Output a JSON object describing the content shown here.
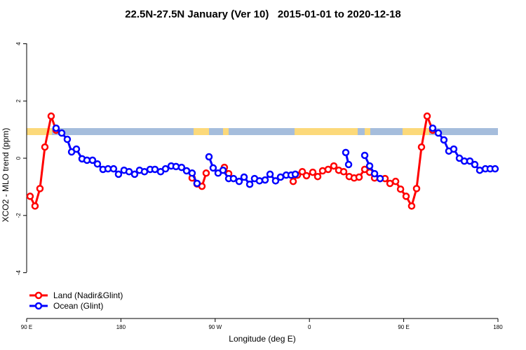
{
  "chart_data": {
    "type": "line",
    "title": "22.5N-27.5N January (Ver 10)   2015-01-01 to 2020-12-18",
    "x_label": "Longitude (deg E)",
    "y_label": "XCO2 - MLO trend (ppm)",
    "xlim": [
      90,
      540
    ],
    "xticks": [
      {
        "value": 90,
        "label": "90 E"
      },
      180,
      {
        "value": 270,
        "label": "90 W"
      },
      {
        "value": 360,
        "label": "0"
      },
      {
        "value": 450,
        "label": "90 E"
      },
      {
        "value": 540,
        "label": "180"
      }
    ],
    "ylim": [
      -5.6,
      4.55
    ],
    "yticks": [
      -4,
      -2,
      0,
      2,
      4
    ],
    "legend": "bottom-left",
    "series": [
      {
        "name": "Land (Nadir&Glint)",
        "color": "#ff0000",
        "x": [
          93.3,
          98,
          102.7,
          107.4,
          113.4,
          118.1,
          180,
          248,
          252.7,
          257.4,
          261.4,
          270,
          278.8,
          282.9,
          310,
          344.5,
          348.5,
          353.2,
          357.2,
          363.2,
          367.9,
          372.6,
          377.9,
          383.3,
          388,
          392.7,
          398,
          402.7,
          407.4,
          412.8,
          417.5,
          422.2,
          427.5,
          432.2,
          436.9,
          442.3,
          447,
          452.3,
          457.6,
          462.3,
          467,
          472.4,
          477.7
        ],
        "values": [
          -1.33,
          -1.67,
          -1.06,
          0.39,
          1.47,
          0.98,
          null,
          -0.69,
          -0.9,
          -0.98,
          -0.52,
          null,
          -0.32,
          -0.54,
          null,
          -0.81,
          -0.59,
          -0.47,
          -0.61,
          -0.49,
          -0.64,
          -0.44,
          -0.39,
          -0.27,
          -0.42,
          -0.47,
          -0.64,
          -0.69,
          -0.66,
          -0.39,
          -0.49,
          -0.69,
          -0.71,
          -0.71,
          -0.88,
          -0.81,
          -1.08,
          -1.33,
          -1.67,
          -1.06,
          0.39,
          1.47,
          0.98
        ]
      },
      {
        "name": "Ocean (Glint)",
        "color": "#0000ff",
        "x": [
          118.1,
          123.5,
          128.8,
          132.9,
          137.5,
          142.9,
          147.6,
          152.9,
          157.6,
          162.9,
          167.7,
          173,
          177.7,
          183,
          187.8,
          193.1,
          197.8,
          202.5,
          207.9,
          212.5,
          217.9,
          222.6,
          228,
          232.6,
          237.9,
          242.7,
          248,
          252.7,
          258,
          264.1,
          268.1,
          272.8,
          277.5,
          282.9,
          287.5,
          292.9,
          297.6,
          303,
          307.6,
          312.3,
          317.7,
          322.4,
          327.7,
          332.4,
          337.8,
          342.5,
          346.5,
          370,
          394.7,
          397.4,
          405,
          412.8,
          417.5,
          422.2,
          427.5,
          450,
          477.7,
          483.1,
          488.4,
          493.1,
          497.8,
          503.2,
          507.9,
          513.2,
          517.9,
          522.6,
          528,
          532.6,
          537.3
        ],
        "values": [
          1.05,
          0.88,
          0.66,
          0.22,
          0.32,
          -0.02,
          -0.07,
          -0.07,
          -0.2,
          -0.39,
          -0.37,
          -0.37,
          -0.56,
          -0.42,
          -0.47,
          -0.56,
          -0.42,
          -0.47,
          -0.39,
          -0.39,
          -0.47,
          -0.37,
          -0.27,
          -0.29,
          -0.32,
          -0.44,
          -0.52,
          -0.88,
          null,
          0.05,
          -0.34,
          -0.52,
          -0.42,
          -0.71,
          -0.71,
          -0.81,
          -0.66,
          -0.91,
          -0.71,
          -0.79,
          -0.76,
          -0.56,
          -0.79,
          -0.66,
          -0.59,
          -0.59,
          -0.56,
          null,
          0.2,
          -0.22,
          null,
          0.1,
          -0.27,
          -0.54,
          -0.71,
          null,
          1.05,
          0.88,
          0.64,
          0.25,
          0.32,
          0,
          -0.1,
          -0.1,
          -0.22,
          -0.42,
          -0.37,
          -0.37,
          -0.37
        ]
      }
    ]
  }
}
